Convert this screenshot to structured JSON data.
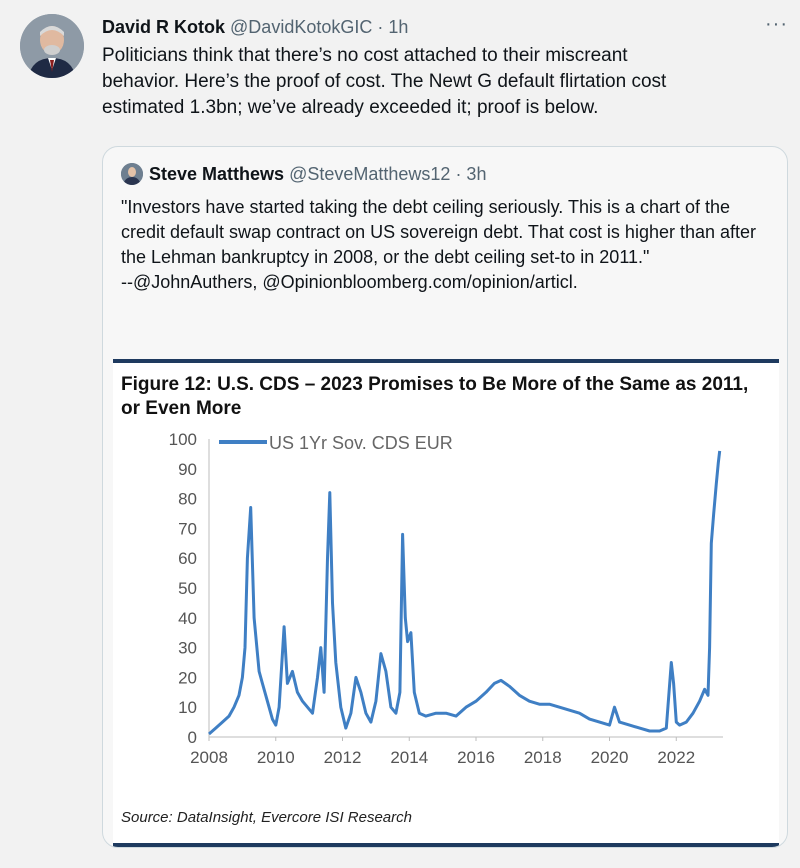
{
  "tweet": {
    "author_name": "David R Kotok",
    "handle": "@DavidKotokGIC",
    "time": "· 1h",
    "more": "···",
    "text": "Politicians think that there’s no cost attached to their miscreant behavior. Here’s the proof of cost.  The Newt G default flirtation cost estimated 1.3bn; we’ve already exceeded it; proof is below."
  },
  "quote": {
    "author_name": "Steve Matthews",
    "handle": "@SteveMatthews12",
    "time": "· 3h",
    "text_line1": "\"Investors have started taking the debt ceiling seriously. This is a chart of the credit default swap contract on US sovereign debt. That cost is higher than after the Lehman bankruptcy in 2008, or the debt ceiling set-to in 2011.\"",
    "text_line2": "--@JohnAuthers, @Opinionbloomberg.com/opinion/articl."
  },
  "figure": {
    "title": "Figure 12: U.S. CDS – 2023 Promises to Be More of the Same as 2011, or Even More",
    "source": "Source: DataInsight, Evercore ISI Research"
  },
  "chart_data": {
    "type": "line",
    "title": "Figure 12: U.S. CDS – 2023 Promises to Be More of the Same as 2011, or Even More",
    "xlabel": "",
    "ylabel": "",
    "xlim": [
      2008,
      2023.4
    ],
    "ylim": [
      0,
      100
    ],
    "x_ticks": [
      2008,
      2010,
      2012,
      2014,
      2016,
      2018,
      2020,
      2022
    ],
    "y_ticks": [
      0,
      10,
      20,
      30,
      40,
      50,
      60,
      70,
      80,
      90,
      100
    ],
    "grid": false,
    "legend_position": "top-left",
    "line_color": "#3f7fc4",
    "series": [
      {
        "name": "US 1Yr Sov. CDS EUR",
        "x": [
          2008.0,
          2008.2,
          2008.4,
          2008.6,
          2008.75,
          2008.9,
          2009.0,
          2009.08,
          2009.15,
          2009.25,
          2009.35,
          2009.5,
          2009.6,
          2009.75,
          2009.9,
          2010.0,
          2010.1,
          2010.25,
          2010.35,
          2010.5,
          2010.65,
          2010.8,
          2010.95,
          2011.1,
          2011.25,
          2011.35,
          2011.45,
          2011.55,
          2011.62,
          2011.7,
          2011.8,
          2011.95,
          2012.1,
          2012.25,
          2012.4,
          2012.55,
          2012.7,
          2012.85,
          2013.0,
          2013.15,
          2013.3,
          2013.45,
          2013.6,
          2013.72,
          2013.8,
          2013.88,
          2013.95,
          2014.05,
          2014.15,
          2014.3,
          2014.5,
          2014.8,
          2015.1,
          2015.4,
          2015.7,
          2016.0,
          2016.3,
          2016.55,
          2016.75,
          2017.0,
          2017.3,
          2017.6,
          2017.9,
          2018.2,
          2018.5,
          2018.8,
          2019.1,
          2019.4,
          2019.7,
          2020.0,
          2020.15,
          2020.3,
          2020.6,
          2020.9,
          2021.2,
          2021.5,
          2021.7,
          2021.85,
          2021.92,
          2022.0,
          2022.1,
          2022.3,
          2022.5,
          2022.7,
          2022.85,
          2022.95,
          2023.0,
          2023.05,
          2023.12,
          2023.2,
          2023.26,
          2023.3
        ],
        "y": [
          1,
          3,
          5,
          7,
          10,
          14,
          20,
          30,
          60,
          77,
          40,
          22,
          18,
          12,
          6,
          4,
          10,
          37,
          18,
          22,
          15,
          12,
          10,
          8,
          20,
          30,
          15,
          60,
          82,
          45,
          25,
          10,
          3,
          8,
          20,
          15,
          8,
          5,
          12,
          28,
          22,
          10,
          8,
          15,
          68,
          40,
          32,
          35,
          15,
          8,
          7,
          8,
          8,
          7,
          10,
          12,
          15,
          18,
          19,
          17,
          14,
          12,
          11,
          11,
          10,
          9,
          8,
          6,
          5,
          4,
          10,
          5,
          4,
          3,
          2,
          2,
          3,
          25,
          18,
          5,
          4,
          5,
          8,
          12,
          16,
          14,
          30,
          65,
          75,
          85,
          92,
          96
        ]
      }
    ]
  }
}
